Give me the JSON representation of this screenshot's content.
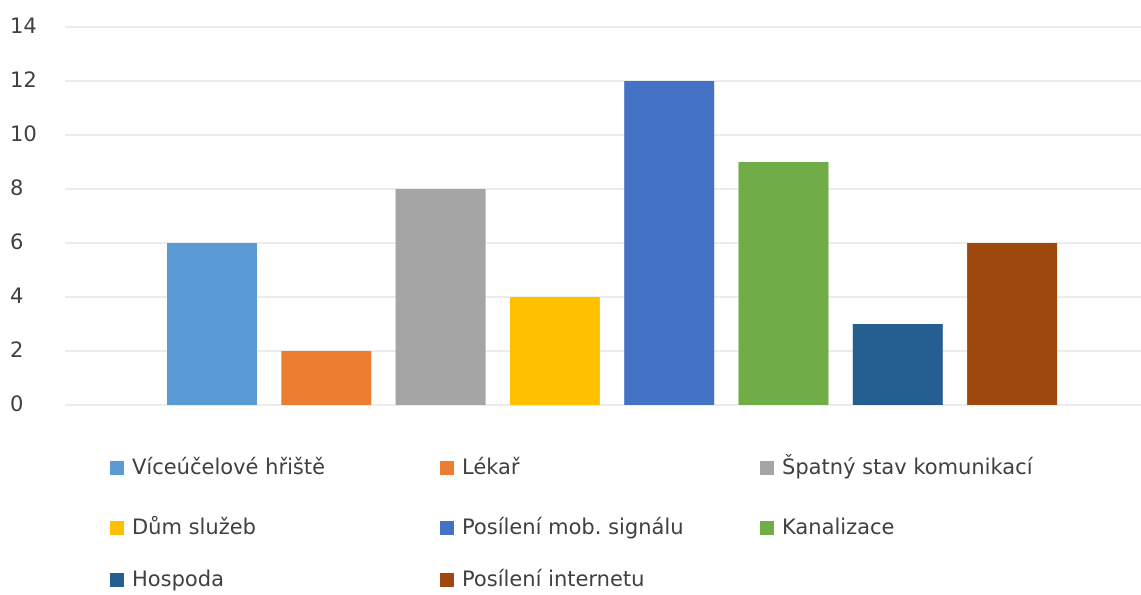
{
  "chart_data": {
    "type": "bar",
    "series": [
      {
        "name": "Víceúčelové hřiště",
        "color": "#5b9bd5",
        "values": [
          6
        ]
      },
      {
        "name": "Lékař",
        "color": "#ed7d31",
        "values": [
          2
        ]
      },
      {
        "name": "Špatný stav komunikací",
        "color": "#a5a5a5",
        "values": [
          8
        ]
      },
      {
        "name": "Dům služeb",
        "color": "#ffc000",
        "values": [
          4
        ]
      },
      {
        "name": "Posílení mob. signálu",
        "color": "#4472c4",
        "values": [
          12
        ]
      },
      {
        "name": "Kanalizace",
        "color": "#70ad47",
        "values": [
          9
        ]
      },
      {
        "name": "Hospoda",
        "color": "#255e91",
        "values": [
          3
        ]
      },
      {
        "name": "Posílení internetu",
        "color": "#9e480e",
        "values": [
          6
        ]
      }
    ],
    "ylim": [
      0,
      14
    ],
    "yticks": [
      0,
      2,
      4,
      6,
      8,
      10,
      12,
      14
    ],
    "grid": true,
    "legend": "bottom"
  }
}
